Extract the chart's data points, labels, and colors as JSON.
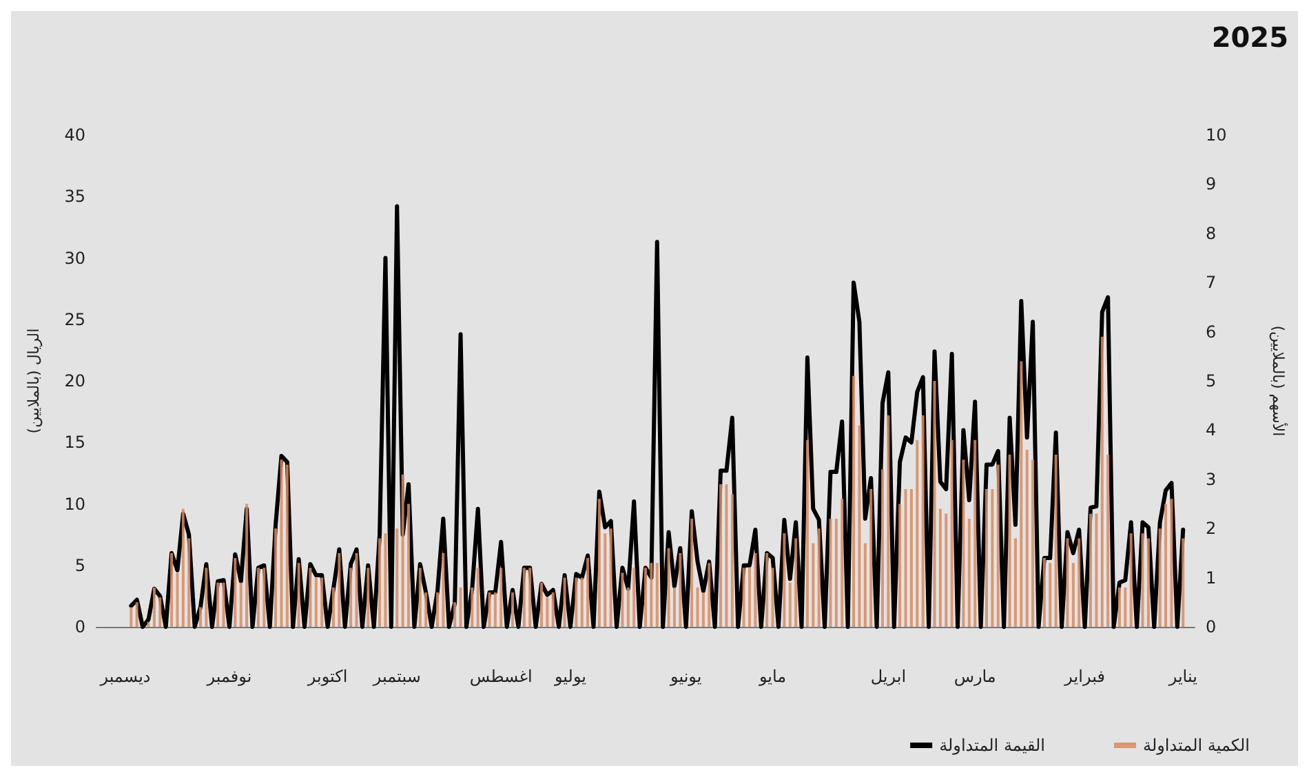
{
  "chart_data": {
    "type": "line",
    "title": "2025",
    "ylabel": "الريال (بالملايين)",
    "y2label": "الأسهم (بالملايين)",
    "categories": [
      null,
      null,
      null,
      null,
      null,
      "ديسمبر",
      null,
      null,
      null,
      null,
      null,
      null,
      null,
      null,
      null,
      null,
      null,
      null,
      null,
      null,
      null,
      null,
      null,
      "نوفمبر",
      null,
      null,
      null,
      null,
      null,
      null,
      null,
      null,
      null,
      null,
      null,
      null,
      null,
      null,
      null,
      null,
      "اكتوبر",
      null,
      null,
      null,
      null,
      null,
      null,
      null,
      null,
      null,
      null,
      null,
      "سبتمبر",
      null,
      null,
      null,
      null,
      null,
      null,
      null,
      null,
      null,
      null,
      null,
      null,
      null,
      null,
      null,
      null,
      null,
      "اغسطس",
      null,
      null,
      null,
      null,
      null,
      null,
      null,
      null,
      null,
      null,
      null,
      "يوليو",
      null,
      null,
      null,
      null,
      null,
      null,
      null,
      null,
      null,
      null,
      null,
      null,
      null,
      null,
      null,
      null,
      null,
      null,
      null,
      "يونيو",
      null,
      null,
      null,
      null,
      null,
      null,
      null,
      null,
      null,
      null,
      null,
      null,
      null,
      null,
      "مايو",
      null,
      null,
      null,
      null,
      null,
      null,
      null,
      null,
      null,
      null,
      null,
      null,
      null,
      null,
      null,
      null,
      null,
      null,
      null,
      "ابريل",
      null,
      null,
      null,
      null,
      null,
      null,
      null,
      null,
      null,
      null,
      null,
      null,
      null,
      null,
      "مارس",
      null,
      null,
      null,
      null,
      null,
      null,
      null,
      null,
      null,
      null,
      null,
      null,
      null,
      null,
      null,
      null,
      null,
      null,
      "فبراير",
      null,
      null,
      null,
      null,
      null,
      null,
      null,
      null,
      null,
      null,
      null,
      null,
      null,
      null,
      null,
      null,
      "يناير",
      null,
      null
    ],
    "series": [
      {
        "name": "الكمية المتداولة",
        "type": "bar",
        "axis": "y2",
        "color": "#d9895f",
        "values": [
          null,
          null,
          null,
          null,
          null,
          null,
          0.4,
          0.5,
          null,
          0.1,
          0.8,
          0.6,
          null,
          1.5,
          1.1,
          2.4,
          1.8,
          null,
          0.4,
          1.2,
          null,
          0.9,
          0.9,
          null,
          1.4,
          0.9,
          2.5,
          null,
          1.2,
          1.2,
          null,
          2,
          3.4,
          3.3,
          null,
          1.3,
          null,
          1.2,
          1,
          1,
          null,
          0.8,
          1.5,
          null,
          1.2,
          1.5,
          null,
          1.2,
          null,
          1.8,
          1.9,
          null,
          2,
          3.1,
          2.5,
          null,
          1.2,
          0.7,
          null,
          0.7,
          1.5,
          null,
          0.5,
          0.8,
          null,
          0.8,
          1.2,
          null,
          0.7,
          0.7,
          1.2,
          null,
          0.7,
          null,
          1.2,
          1.2,
          null,
          0.9,
          0.6,
          0.7,
          null,
          1,
          null,
          1,
          1,
          1.4,
          null,
          2.6,
          1.9,
          2,
          null,
          1.1,
          0.8,
          1.2,
          null,
          1.2,
          1.3,
          1.3,
          null,
          1.6,
          0.8,
          1.5,
          null,
          2.2,
          0.8,
          0.7,
          1.3,
          null,
          2.9,
          2.9,
          2.7,
          null,
          1.2,
          1.2,
          1.5,
          null,
          1.5,
          1.2,
          null,
          1.9,
          0.9,
          1.8,
          null,
          3.8,
          1.7,
          2,
          null,
          2.2,
          2.2,
          2.6,
          null,
          5.1,
          4.1,
          1.7,
          2.8,
          null,
          3.2,
          4.3,
          null,
          2.5,
          2.8,
          2.8,
          3.8,
          4.3,
          null,
          5,
          2.4,
          2.3,
          3.8,
          null,
          3.4,
          2.2,
          3.8,
          null,
          2.8,
          2.8,
          3.3,
          null,
          3.5,
          1.8,
          5.4,
          3.6,
          3.4,
          null,
          1.4,
          1.3,
          3.5,
          null,
          1.8,
          1.3,
          1.8,
          null,
          2.3,
          2.3,
          5.9,
          3.5,
          null,
          0.8,
          0.8,
          1.9,
          null,
          1.9,
          1.8,
          null,
          2,
          2.5,
          2.6,
          null,
          1.8,
          null,
          null
        ]
      },
      {
        "name": "القيمة المتداولة",
        "color": "#000000",
        "values": [
          null,
          null,
          null,
          null,
          null,
          null,
          1.7,
          2.2,
          0,
          0.6,
          3.1,
          2.5,
          0,
          6,
          4.6,
          9.2,
          7.5,
          0,
          1.6,
          5.1,
          0,
          3.7,
          3.8,
          0,
          5.9,
          3.7,
          9.6,
          0,
          4.8,
          5,
          0,
          8.3,
          13.9,
          13.4,
          0,
          5.5,
          0,
          5.1,
          4.2,
          4.2,
          0,
          3.1,
          6.3,
          0,
          5.1,
          6.3,
          0,
          5,
          0,
          7.5,
          30,
          0,
          34.2,
          7.5,
          11.6,
          0,
          5.1,
          2.8,
          0,
          2.9,
          8.8,
          0,
          1.9,
          23.8,
          0,
          3.1,
          9.6,
          0,
          2.8,
          2.8,
          6.9,
          0,
          3,
          0,
          4.8,
          4.8,
          0,
          3.5,
          2.6,
          3,
          0,
          4.2,
          0,
          4.3,
          4,
          5.8,
          0,
          11,
          8.1,
          8.6,
          0,
          4.8,
          3.1,
          10.2,
          0,
          4.8,
          4,
          31.3,
          0,
          7.7,
          3.3,
          6.4,
          0,
          9.4,
          5.3,
          2.9,
          5.3,
          0,
          12.7,
          12.7,
          17,
          0,
          5,
          5,
          7.9,
          0,
          6,
          5.6,
          0,
          8.7,
          3.9,
          8.5,
          0,
          21.9,
          9.6,
          8.7,
          0,
          12.6,
          12.6,
          16.7,
          0,
          28,
          24.8,
          8.8,
          12.1,
          0,
          18.2,
          20.7,
          0,
          13.4,
          15.4,
          15,
          19.1,
          20.3,
          0,
          22.4,
          11.8,
          11.2,
          22.2,
          0,
          16,
          10.3,
          18.3,
          0,
          13.2,
          13.2,
          14.3,
          0,
          17,
          8.3,
          26.5,
          15.4,
          24.8,
          0,
          5.6,
          5.6,
          15.8,
          0,
          7.7,
          6,
          7.9,
          0,
          9.7,
          9.8,
          25.6,
          26.8,
          0,
          3.6,
          3.8,
          8.5,
          0,
          8.5,
          8.1,
          0,
          8.5,
          11.1,
          11.7,
          0,
          7.9,
          null,
          null
        ]
      }
    ],
    "ylim": [
      0,
      40
    ],
    "yticks": [
      0,
      5,
      10,
      15,
      20,
      25,
      30,
      35,
      40
    ],
    "y2lim": [
      0,
      10
    ],
    "y2ticks": [
      0,
      1,
      2,
      3,
      4,
      5,
      6,
      7,
      8,
      9,
      10
    ],
    "grid": false,
    "legend": "bottom right",
    "marker": "none"
  }
}
